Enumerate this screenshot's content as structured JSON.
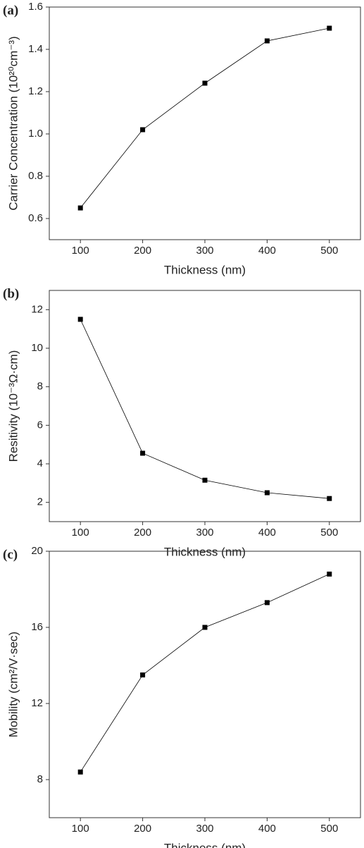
{
  "chart_data": [
    {
      "type": "line",
      "panel_label": "(a)",
      "x_label": "Thickness (nm)",
      "y_label": "Carrier Concentration (10²⁰cm⁻³)",
      "x": [
        100,
        200,
        300,
        400,
        500
      ],
      "xlim": [
        50,
        550
      ],
      "xticks": [
        100,
        200,
        300,
        400,
        500
      ],
      "ylim": [
        0.5,
        1.6
      ],
      "yticks": [
        0.6,
        0.8,
        {
          "value": 1,
          "label": "1.0"
        },
        1.2,
        1.4,
        1.6
      ],
      "series": [
        {
          "color": "#000000",
          "values": [
            0.65,
            1.02,
            1.24,
            1.44,
            1.5
          ]
        }
      ]
    },
    {
      "type": "line",
      "panel_label": "(b)",
      "x_label": "Thickness (nm)",
      "y_label": "Resitivity (10⁻³Ω·cm)",
      "x": [
        100,
        200,
        300,
        400,
        500
      ],
      "xlim": [
        50,
        550
      ],
      "xticks": [
        100,
        200,
        300,
        400,
        500
      ],
      "ylim": [
        1,
        13
      ],
      "yticks": [
        2,
        4,
        6,
        8,
        10,
        12
      ],
      "series": [
        {
          "color": "#000000",
          "values": [
            11.5,
            4.55,
            3.15,
            2.5,
            2.2
          ]
        }
      ]
    },
    {
      "type": "line",
      "panel_label": "(c)",
      "x_label": "Thickness (nm)",
      "y_label": "Mobility (cm²/V·sec)",
      "x": [
        100,
        200,
        300,
        400,
        500
      ],
      "xlim": [
        50,
        550
      ],
      "xticks": [
        100,
        200,
        300,
        400,
        500
      ],
      "ylim": [
        6,
        20
      ],
      "yticks": [
        8,
        12,
        16,
        20
      ],
      "series": [
        {
          "color": "#000000",
          "values": [
            8.4,
            13.5,
            16,
            17.3,
            18.8
          ]
        }
      ]
    }
  ]
}
